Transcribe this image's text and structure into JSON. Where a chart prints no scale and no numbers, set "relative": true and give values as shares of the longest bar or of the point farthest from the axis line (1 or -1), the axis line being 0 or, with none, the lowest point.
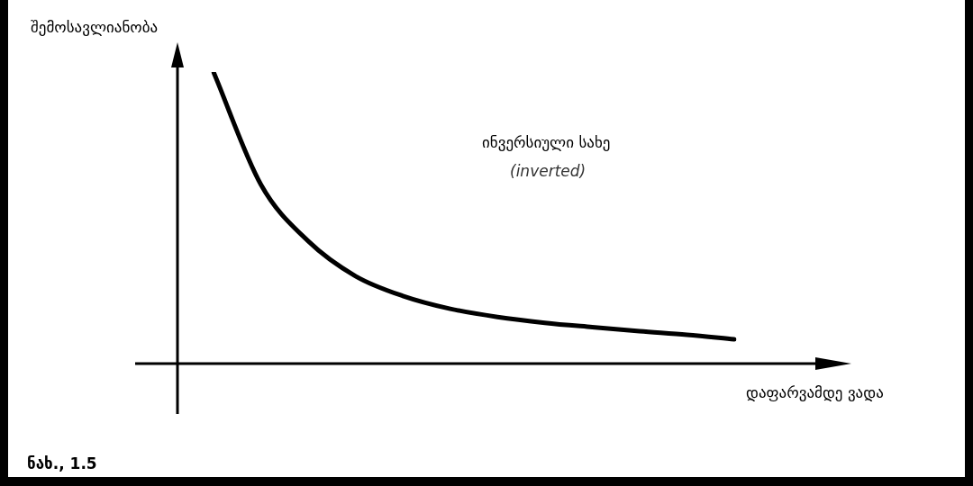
{
  "chart_data": {
    "type": "line",
    "relative": true,
    "xlabel": "დაფარვამდე ვადა",
    "ylabel": "შემოსავლიანობა",
    "categories": [
      null,
      null,
      null,
      null,
      null,
      null,
      null,
      null,
      null,
      null,
      null,
      null
    ],
    "values": [
      1.0,
      0.614,
      0.42,
      0.3,
      0.232,
      0.188,
      0.16,
      0.14,
      0.125,
      0.111,
      0.099,
      0.083
    ],
    "color": "#000000",
    "marker": "none",
    "annotations": [
      "ინვერსიული სახე",
      "(inverted)",
      "ნახ., 1.5"
    ]
  }
}
